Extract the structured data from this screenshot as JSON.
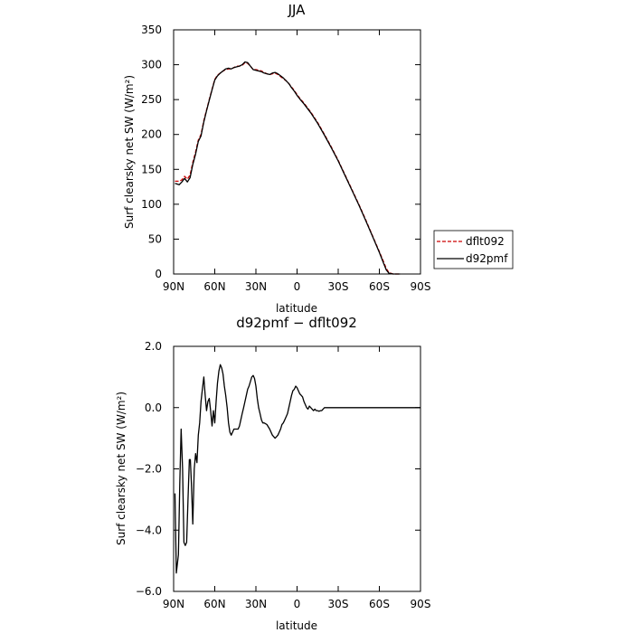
{
  "chart_data": [
    {
      "type": "line",
      "title": "JJA",
      "xlabel": "latitude",
      "ylabel": "Surf clearsky net SW (W/m²)",
      "xlim": [
        90,
        -90
      ],
      "ylim": [
        0,
        350
      ],
      "xticks": [
        90,
        60,
        30,
        0,
        -30,
        -60,
        -90
      ],
      "xtick_labels": [
        "90N",
        "60N",
        "30N",
        "0",
        "30S",
        "60S",
        "90S"
      ],
      "yticks": [
        0,
        50,
        100,
        150,
        200,
        250,
        300,
        350
      ],
      "ytick_labels": [
        "0",
        "50",
        "100",
        "150",
        "200",
        "250",
        "300",
        "350"
      ],
      "legend_position": "right",
      "series": [
        {
          "name": "dflt092",
          "color": "#cc0000",
          "dash": "dashed",
          "points": [
            [
              89,
              133
            ],
            [
              86,
              133
            ],
            [
              84,
              135
            ],
            [
              82,
              140
            ],
            [
              80,
              136
            ],
            [
              78,
              142
            ],
            [
              76,
              160
            ],
            [
              74,
              175
            ],
            [
              72,
              192
            ],
            [
              70,
              200
            ],
            [
              68,
              220
            ],
            [
              66,
              235
            ],
            [
              64,
              250
            ],
            [
              62,
              265
            ],
            [
              60,
              279
            ],
            [
              58,
              285
            ],
            [
              56,
              288
            ],
            [
              54,
              291
            ],
            [
              52,
              293
            ],
            [
              50,
              294
            ],
            [
              48,
              294
            ],
            [
              46,
              296
            ],
            [
              44,
              298
            ],
            [
              42,
              298
            ],
            [
              40,
              299
            ],
            [
              38,
              303
            ],
            [
              36,
              302
            ],
            [
              34,
              298
            ],
            [
              32,
              293
            ],
            [
              30,
              293
            ],
            [
              28,
              292
            ],
            [
              26,
              291
            ],
            [
              24,
              289
            ],
            [
              22,
              287
            ],
            [
              20,
              286
            ],
            [
              18,
              287
            ],
            [
              16,
              288
            ],
            [
              14,
              286
            ],
            [
              12,
              283
            ],
            [
              10,
              280
            ],
            [
              8,
              277
            ],
            [
              6,
              273
            ],
            [
              4,
              268
            ],
            [
              2,
              263
            ],
            [
              0,
              257
            ],
            [
              -2,
              252
            ],
            [
              -5,
              245
            ],
            [
              -10,
              232
            ],
            [
              -15,
              217
            ],
            [
              -20,
              200
            ],
            [
              -25,
              182
            ],
            [
              -30,
              163
            ],
            [
              -35,
              142
            ],
            [
              -40,
              121
            ],
            [
              -45,
              100
            ],
            [
              -50,
              78
            ],
            [
              -55,
              55
            ],
            [
              -60,
              32
            ],
            [
              -63,
              18
            ],
            [
              -65,
              8
            ],
            [
              -67,
              2
            ],
            [
              -70,
              0
            ],
            [
              -75,
              0
            ]
          ]
        },
        {
          "name": "d92pmf",
          "color": "#000000",
          "dash": "solid",
          "points": [
            [
              89,
              130
            ],
            [
              86,
              128
            ],
            [
              84,
              132
            ],
            [
              82,
              137
            ],
            [
              80,
              132
            ],
            [
              78,
              138
            ],
            [
              76,
              157
            ],
            [
              74,
              172
            ],
            [
              72,
              190
            ],
            [
              70,
              198
            ],
            [
              68,
              218
            ],
            [
              66,
              234
            ],
            [
              64,
              249
            ],
            [
              62,
              264
            ],
            [
              60,
              278
            ],
            [
              58,
              284
            ],
            [
              56,
              288
            ],
            [
              54,
              291
            ],
            [
              52,
              294
            ],
            [
              50,
              295
            ],
            [
              48,
              294
            ],
            [
              46,
              296
            ],
            [
              44,
              297
            ],
            [
              42,
              298
            ],
            [
              40,
              300
            ],
            [
              38,
              304
            ],
            [
              36,
              303
            ],
            [
              34,
              298
            ],
            [
              32,
              293
            ],
            [
              30,
              292
            ],
            [
              28,
              291
            ],
            [
              26,
              290
            ],
            [
              24,
              288
            ],
            [
              22,
              287
            ],
            [
              20,
              286
            ],
            [
              18,
              288
            ],
            [
              16,
              289
            ],
            [
              14,
              287
            ],
            [
              12,
              284
            ],
            [
              10,
              281
            ],
            [
              8,
              277
            ],
            [
              6,
              273
            ],
            [
              4,
              267
            ],
            [
              2,
              262
            ],
            [
              0,
              256
            ],
            [
              -2,
              251
            ],
            [
              -5,
              244
            ],
            [
              -10,
              231
            ],
            [
              -15,
              216
            ],
            [
              -20,
              199
            ],
            [
              -25,
              181
            ],
            [
              -30,
              162
            ],
            [
              -35,
              141
            ],
            [
              -40,
              120
            ],
            [
              -45,
              99
            ],
            [
              -50,
              77
            ],
            [
              -55,
              54
            ],
            [
              -60,
              31
            ],
            [
              -63,
              16
            ],
            [
              -65,
              6
            ],
            [
              -67,
              1
            ],
            [
              -70,
              0
            ],
            [
              -75,
              0
            ]
          ]
        }
      ]
    },
    {
      "type": "line",
      "title": "d92pmf − dflt092",
      "xlabel": "latitude",
      "ylabel": "Surf clearsky net SW (W/m²)",
      "xlim": [
        90,
        -90
      ],
      "ylim": [
        -6,
        2
      ],
      "xticks": [
        90,
        60,
        30,
        0,
        -30,
        -60,
        -90
      ],
      "xtick_labels": [
        "90N",
        "60N",
        "30N",
        "0",
        "30S",
        "60S",
        "90S"
      ],
      "yticks": [
        -6,
        -4,
        -2,
        0,
        2
      ],
      "ytick_labels": [
        "−6.0",
        "−4.0",
        "−2.0",
        "0.0",
        "2.0"
      ],
      "series": [
        {
          "color": "#000000",
          "dash": "solid",
          "points": [
            [
              89,
              -2.8
            ],
            [
              88,
              -5.4
            ],
            [
              86.5,
              -4.8
            ],
            [
              85.5,
              -2.5
            ],
            [
              84.5,
              -0.7
            ],
            [
              83.5,
              -2.0
            ],
            [
              82.5,
              -4.4
            ],
            [
              81.5,
              -4.5
            ],
            [
              80.5,
              -4.4
            ],
            [
              79.5,
              -3.0
            ],
            [
              78.5,
              -1.7
            ],
            [
              77.8,
              -1.7
            ],
            [
              77,
              -2.5
            ],
            [
              76,
              -3.8
            ],
            [
              75,
              -2.0
            ],
            [
              74,
              -1.5
            ],
            [
              73,
              -1.8
            ],
            [
              72,
              -0.9
            ],
            [
              71,
              -0.5
            ],
            [
              70,
              0.2
            ],
            [
              69,
              0.6
            ],
            [
              68,
              1.0
            ],
            [
              67,
              0.4
            ],
            [
              66,
              -0.1
            ],
            [
              65,
              0.2
            ],
            [
              64,
              0.3
            ],
            [
              63,
              -0.1
            ],
            [
              62,
              -0.6
            ],
            [
              61,
              -0.1
            ],
            [
              60,
              -0.5
            ],
            [
              59,
              0.2
            ],
            [
              58,
              0.8
            ],
            [
              57,
              1.2
            ],
            [
              56,
              1.4
            ],
            [
              55,
              1.3
            ],
            [
              54,
              1.1
            ],
            [
              53,
              0.7
            ],
            [
              52,
              0.4
            ],
            [
              51,
              0.0
            ],
            [
              50,
              -0.5
            ],
            [
              49,
              -0.8
            ],
            [
              48,
              -0.9
            ],
            [
              47,
              -0.8
            ],
            [
              46,
              -0.7
            ],
            [
              45,
              -0.7
            ],
            [
              43,
              -0.7
            ],
            [
              42,
              -0.6
            ],
            [
              41,
              -0.4
            ],
            [
              40,
              -0.2
            ],
            [
              39,
              0.0
            ],
            [
              38,
              0.2
            ],
            [
              37,
              0.4
            ],
            [
              36,
              0.6
            ],
            [
              35,
              0.7
            ],
            [
              34,
              0.85
            ],
            [
              33,
              1.0
            ],
            [
              32,
              1.05
            ],
            [
              31,
              0.95
            ],
            [
              30,
              0.7
            ],
            [
              29,
              0.3
            ],
            [
              28,
              0.0
            ],
            [
              27,
              -0.2
            ],
            [
              26,
              -0.4
            ],
            [
              25,
              -0.5
            ],
            [
              24,
              -0.5
            ],
            [
              22,
              -0.55
            ],
            [
              20,
              -0.7
            ],
            [
              18,
              -0.9
            ],
            [
              16,
              -1.0
            ],
            [
              15,
              -0.95
            ],
            [
              14,
              -0.9
            ],
            [
              13,
              -0.8
            ],
            [
              12,
              -0.7
            ],
            [
              11,
              -0.55
            ],
            [
              10,
              -0.5
            ],
            [
              9,
              -0.4
            ],
            [
              8,
              -0.3
            ],
            [
              7,
              -0.2
            ],
            [
              6,
              0.0
            ],
            [
              5,
              0.2
            ],
            [
              4,
              0.4
            ],
            [
              3,
              0.55
            ],
            [
              2,
              0.6
            ],
            [
              1,
              0.7
            ],
            [
              0,
              0.65
            ],
            [
              -1,
              0.55
            ],
            [
              -2,
              0.45
            ],
            [
              -3,
              0.4
            ],
            [
              -4,
              0.35
            ],
            [
              -5,
              0.2
            ],
            [
              -6,
              0.1
            ],
            [
              -7,
              0.0
            ],
            [
              -8,
              -0.05
            ],
            [
              -9,
              0.05
            ],
            [
              -10,
              0.0
            ],
            [
              -11,
              -0.05
            ],
            [
              -12,
              -0.1
            ],
            [
              -13,
              -0.05
            ],
            [
              -14,
              -0.1
            ],
            [
              -15,
              -0.1
            ],
            [
              -16,
              -0.12
            ],
            [
              -17,
              -0.1
            ],
            [
              -18,
              -0.1
            ],
            [
              -19,
              -0.05
            ],
            [
              -20,
              0.0
            ],
            [
              -22,
              0.0
            ],
            [
              -25,
              0.0
            ],
            [
              -30,
              0.0
            ],
            [
              -35,
              0.0
            ],
            [
              -40,
              0.0
            ],
            [
              -45,
              0.0
            ],
            [
              -50,
              0.0
            ],
            [
              -55,
              0.0
            ],
            [
              -60,
              0.0
            ],
            [
              -65,
              0.0
            ],
            [
              -70,
              0.0
            ],
            [
              -75,
              0.0
            ],
            [
              -80,
              0.0
            ],
            [
              -85,
              0.0
            ],
            [
              -90,
              0.0
            ]
          ]
        }
      ]
    }
  ]
}
